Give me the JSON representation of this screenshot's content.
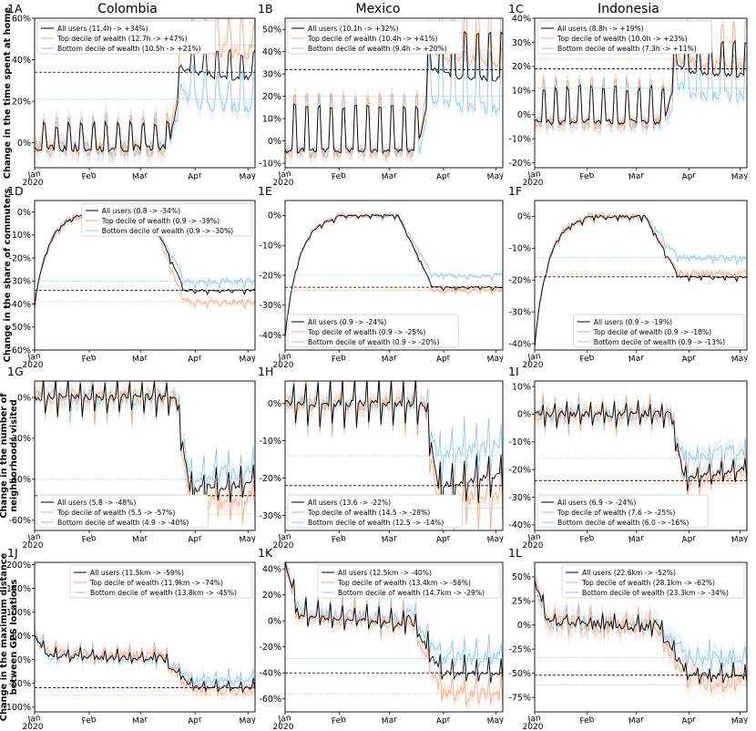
{
  "countries": [
    "Colombia",
    "Mexico",
    "Indonesia"
  ],
  "ylabels": [
    [
      "Change in the time spent at home"
    ],
    [
      "Change in the share of commuters"
    ],
    [
      "Change in the number of",
      "neighborhoods visited"
    ],
    [
      "Change in the maximum distance",
      "between GPS locations"
    ]
  ],
  "months": [
    "Feb",
    "Mar",
    "Apr",
    "May"
  ],
  "jan_label": [
    "Jan",
    "2020"
  ],
  "colors": {
    "all": "#000000",
    "top": "#f4a582",
    "bottom": "#92c5de"
  },
  "chart_data": [
    {
      "panel": "1A",
      "row": 0,
      "col": 0,
      "type": "line",
      "ylim": [
        -12,
        60
      ],
      "yticks": [
        0,
        20,
        40,
        60
      ],
      "tickfmt": "pct",
      "legend_pos": "top-left",
      "legend": [
        "All users (11.4h -> +34%)",
        "Top decile of wealth (12.7h -> +47%)",
        "Bottom decile of wealth (10.5h -> +21%)"
      ],
      "ref": {
        "all": 34,
        "top": 47,
        "bottom": 21
      },
      "pre": {
        "all": 0,
        "top": 0,
        "bottom": 0
      },
      "post": {
        "all": 34,
        "top": 47,
        "bottom": 21
      },
      "shape": "step",
      "weekly": 4,
      "noise": 3
    },
    {
      "panel": "1B",
      "row": 0,
      "col": 1,
      "type": "line",
      "ylim": [
        -12,
        55
      ],
      "yticks": [
        -10,
        0,
        10,
        20,
        30,
        40,
        50
      ],
      "tickfmt": "pct",
      "legend_pos": "top-left",
      "legend": [
        "All users (10.1h -> +32%)",
        "Top decile of wealth (10.4h -> +41%)",
        "Bottom decile of wealth (9.4h -> +20%)"
      ],
      "ref": {
        "all": 32,
        "top": 41,
        "bottom": 20
      },
      "pre": {
        "all": 0,
        "top": 0,
        "bottom": 0
      },
      "post": {
        "all": 32,
        "top": 41,
        "bottom": 20
      },
      "shape": "step",
      "weekly": 7,
      "noise": 2
    },
    {
      "panel": "1C",
      "row": 0,
      "col": 2,
      "type": "line",
      "ylim": [
        -22,
        40
      ],
      "yticks": [
        -20,
        -10,
        0,
        10,
        20,
        30,
        40
      ],
      "tickfmt": "pct",
      "legend_pos": "top-left",
      "legend": [
        "All users (8.8h -> +19%)",
        "Top decile of wealth (10.0h -> +23%)",
        "Bottom decile of wealth (7.3h -> +11%)"
      ],
      "ref": {
        "all": 19,
        "top": 23,
        "bottom": 11
      },
      "pre": {
        "all": 0,
        "top": 0,
        "bottom": 0
      },
      "post": {
        "all": 19,
        "top": 23,
        "bottom": 11
      },
      "shape": "step",
      "weekly": 5,
      "noise": 2
    },
    {
      "panel": "1D",
      "row": 1,
      "col": 0,
      "type": "line",
      "ylim": [
        -60,
        5
      ],
      "yticks": [
        0,
        -10,
        -20,
        -30,
        -40,
        -50,
        -60
      ],
      "tickfmt": "pct",
      "legend_pos": "top-right",
      "legend": [
        "All users (0.8 -> -34%)",
        "Top decile of wealth (0.9 -> -39%)",
        "Bottom decile of wealth (0.9 -> -30%)"
      ],
      "ref": {
        "all": -34,
        "top": -39,
        "bottom": -30
      },
      "pre": {
        "all": 0,
        "top": 0,
        "bottom": 0
      },
      "post": {
        "all": -34,
        "top": -39,
        "bottom": -30
      },
      "shape": "commute",
      "weekly": 0.5,
      "noise": 1
    },
    {
      "panel": "1E",
      "row": 1,
      "col": 1,
      "type": "line",
      "ylim": [
        -45,
        5
      ],
      "yticks": [
        0,
        -10,
        -20,
        -30,
        -40
      ],
      "tickfmt": "pct",
      "legend_pos": "bottom-left",
      "legend": [
        "All users (0.9 -> -24%)",
        "Top decile of wealth (0.9 -> -25%)",
        "Bottom decile of wealth (0.9 -> -20%)"
      ],
      "ref": {
        "all": -24,
        "top": -25,
        "bottom": -20
      },
      "pre": {
        "all": 0,
        "top": 0,
        "bottom": 0
      },
      "post": {
        "all": -24,
        "top": -25,
        "bottom": -20
      },
      "shape": "commute",
      "weekly": 0.3,
      "noise": 0.5
    },
    {
      "panel": "1F",
      "row": 1,
      "col": 2,
      "type": "line",
      "ylim": [
        -42,
        5
      ],
      "yticks": [
        0,
        -10,
        -20,
        -30,
        -40
      ],
      "tickfmt": "pct",
      "legend_pos": "bottom-right",
      "legend": [
        "All users (0.9 -> -19%)",
        "Top decile of wealth (0.9 -> -18%)",
        "Bottom decile of wealth (0.9 -> -13%)"
      ],
      "ref": {
        "all": -19,
        "top": -18,
        "bottom": -13
      },
      "pre": {
        "all": 0,
        "top": 0,
        "bottom": 0
      },
      "post": {
        "all": -19,
        "top": -18,
        "bottom": -13
      },
      "shape": "commute",
      "weekly": 0.4,
      "noise": 0.7
    },
    {
      "panel": "1G",
      "row": 2,
      "col": 0,
      "type": "line",
      "ylim": [
        -65,
        8
      ],
      "yticks": [
        0,
        -20,
        -40,
        -60
      ],
      "tickfmt": "pct",
      "legend_pos": "bottom-left",
      "legend": [
        "All users (5.8 -> -48%)",
        "Top decile of wealth (5.5 -> -57%)",
        "Bottom decile of wealth (4.9 -> -40%)"
      ],
      "ref": {
        "all": -48,
        "top": -57,
        "bottom": -40
      },
      "pre": {
        "all": 0,
        "top": 0,
        "bottom": 0
      },
      "post": {
        "all": -45,
        "top": -52,
        "bottom": -38
      },
      "shape": "drop",
      "weekly": 4,
      "noise": 3
    },
    {
      "panel": "1H",
      "row": 2,
      "col": 1,
      "type": "line",
      "ylim": [
        -34,
        6
      ],
      "yticks": [
        0,
        -10,
        -20,
        -30
      ],
      "tickfmt": "pct",
      "legend_pos": "bottom-left",
      "legend": [
        "All users (13.6 -> -22%)",
        "Top decile of wealth (14.5 -> -28%)",
        "Bottom decile of wealth (12.5 -> -14%)"
      ],
      "ref": {
        "all": -22,
        "top": -28,
        "bottom": -14
      },
      "pre": {
        "all": 0,
        "top": 0,
        "bottom": 0
      },
      "post": {
        "all": -22,
        "top": -27,
        "bottom": -14
      },
      "shape": "drop",
      "weekly": 3,
      "noise": 1.5
    },
    {
      "panel": "1I",
      "row": 2,
      "col": 2,
      "type": "line",
      "ylim": [
        -42,
        12
      ],
      "yticks": [
        10,
        0,
        -10,
        -20,
        -30,
        -40
      ],
      "tickfmt": "pct",
      "legend_pos": "bottom-left",
      "legend": [
        "All users (6.9 -> -24%)",
        "Top decile of wealth (7.6 -> -25%)",
        "Bottom decile of wealth (6.0 -> -16%)"
      ],
      "ref": {
        "all": -24,
        "top": -25,
        "bottom": -16
      },
      "pre": {
        "all": 0,
        "top": 0,
        "bottom": 0
      },
      "post": {
        "all": -23,
        "top": -24,
        "bottom": -16
      },
      "shape": "drop",
      "weekly": 2,
      "noise": 2
    },
    {
      "panel": "1J",
      "row": 3,
      "col": 0,
      "type": "line",
      "ylim": [
        -110,
        205
      ],
      "yticks": [
        200,
        150,
        100,
        50,
        0,
        -50,
        -100
      ],
      "tickfmt": "pct",
      "legend_pos": "top-right",
      "legend": [
        "All users (11.5km -> -59%)",
        "Top decile of wealth (11.9km -> -74%)",
        "Bottom decile of wealth (13.8km -> -45%)"
      ],
      "ref": {
        "all": -59,
        "top": -74,
        "bottom": -45
      },
      "pre": {
        "all": 10,
        "top": 15,
        "bottom": 10
      },
      "post": {
        "all": -59,
        "top": -65,
        "bottom": -45
      },
      "shape": "distance",
      "weekly": 8,
      "noise": 8
    },
    {
      "panel": "1K",
      "row": 3,
      "col": 1,
      "type": "line",
      "ylim": [
        -70,
        45
      ],
      "yticks": [
        40,
        20,
        0,
        -20,
        -40,
        -60
      ],
      "tickfmt": "pct",
      "legend_pos": "top-right",
      "legend": [
        "All users (12.5km -> -40%)",
        "Top decile of wealth (13.4km -> -56%)",
        "Bottom decile of wealth (14.7km -> -29%)"
      ],
      "ref": {
        "all": -40,
        "top": -56,
        "bottom": -29
      },
      "pre": {
        "all": 5,
        "top": 5,
        "bottom": 8
      },
      "post": {
        "all": -40,
        "top": -56,
        "bottom": -29
      },
      "shape": "distance",
      "weekly": 6,
      "noise": 4
    },
    {
      "panel": "1L",
      "row": 3,
      "col": 2,
      "type": "line",
      "ylim": [
        -90,
        65
      ],
      "yticks": [
        50,
        25,
        0,
        -25,
        -50,
        -75
      ],
      "tickfmt": "pct",
      "legend_pos": "top-right",
      "legend": [
        "All users (22.6km -> -52%)",
        "Top decile of wealth (28.1km -> -62%)",
        "Bottom decile of wealth (23.3km -> -34%)"
      ],
      "ref": {
        "all": -52,
        "top": -62,
        "bottom": -34
      },
      "pre": {
        "all": 5,
        "top": 5,
        "bottom": 5
      },
      "post": {
        "all": -52,
        "top": -58,
        "bottom": -34
      },
      "shape": "distance",
      "weekly": 5,
      "noise": 7
    }
  ]
}
